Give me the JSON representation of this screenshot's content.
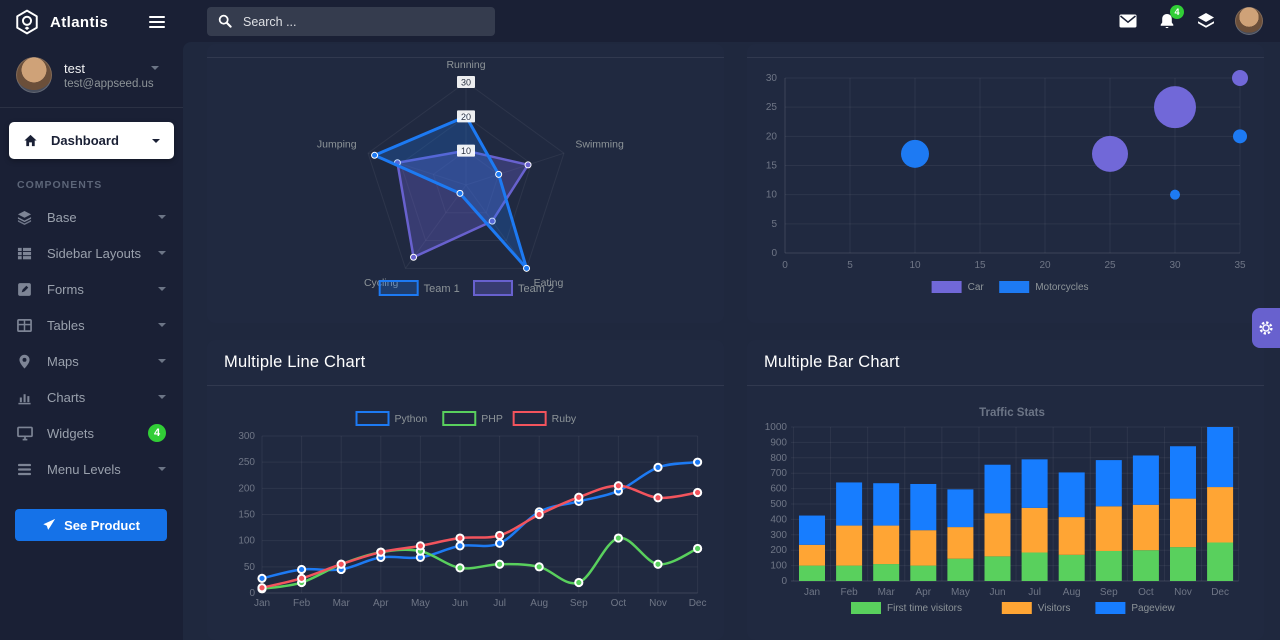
{
  "app": {
    "brand": "Atlantis"
  },
  "sidebar": {
    "user": {
      "name": "test",
      "email": "test@appseed.us"
    },
    "dashboard_label": "Dashboard",
    "section_label": "COMPONENTS",
    "items": [
      {
        "label": "Base",
        "icon": "layers"
      },
      {
        "label": "Sidebar Layouts",
        "icon": "th-list"
      },
      {
        "label": "Forms",
        "icon": "pen-square"
      },
      {
        "label": "Tables",
        "icon": "table"
      },
      {
        "label": "Maps",
        "icon": "map-pin"
      },
      {
        "label": "Charts",
        "icon": "chart-bar"
      },
      {
        "label": "Widgets",
        "icon": "desktop",
        "badge": "4"
      },
      {
        "label": "Menu Levels",
        "icon": "bars"
      }
    ],
    "cta_label": "See Product"
  },
  "header": {
    "search_placeholder": "Search ...",
    "notification_count": "4",
    "icons": [
      "email-icon",
      "notification-bell-icon",
      "layers-icon",
      "user-avatar"
    ]
  },
  "colors": {
    "bg": "#1a2035",
    "content_bg": "#1f283e",
    "card_bg": "#202940",
    "primary": "#1572e8",
    "purple": "#6861ce",
    "success": "#31ce36",
    "blue": "#1d7af3",
    "green": "#59d05d",
    "red": "#f3545d",
    "orange": "#ffa534",
    "bar_blue": "#177dff",
    "muted_text": "#8d9498"
  },
  "chart_data": [
    {
      "type": "radar",
      "categories": [
        "Running",
        "Swimming",
        "Eating",
        "Cycling",
        "Jumping"
      ],
      "series": [
        {
          "name": "Team 1",
          "color": "#1d7af3",
          "fill": "rgba(29,122,243,0.25)",
          "values": [
            20,
            10,
            30,
            3,
            28
          ]
        },
        {
          "name": "Team 2",
          "color": "#6861ce",
          "fill": "rgba(104,97,206,0.35)",
          "values": [
            10,
            19,
            13,
            26,
            21
          ]
        }
      ],
      "ticks": [
        10,
        20,
        30
      ],
      "max": 30,
      "legend_position": "bottom"
    },
    {
      "type": "bubble",
      "series": [
        {
          "name": "Car",
          "color": "#7168d8",
          "points": [
            {
              "x": 25,
              "y": 17,
              "r": 18
            },
            {
              "x": 30,
              "y": 25,
              "r": 21
            },
            {
              "x": 35,
              "y": 30,
              "r": 8
            }
          ]
        },
        {
          "name": "Motorcycles",
          "color": "#1d7af3",
          "points": [
            {
              "x": 10,
              "y": 17,
              "r": 14
            },
            {
              "x": 30,
              "y": 10,
              "r": 5
            },
            {
              "x": 35,
              "y": 20,
              "r": 7
            }
          ]
        }
      ],
      "xlim": [
        0,
        35
      ],
      "xstep": 5,
      "ylim": [
        0,
        30
      ],
      "ystep": 5,
      "grid": true,
      "legend_position": "bottom"
    },
    {
      "type": "line",
      "title": "Multiple Line Chart",
      "categories": [
        "Jan",
        "Feb",
        "Mar",
        "Apr",
        "May",
        "Jun",
        "Jul",
        "Aug",
        "Sep",
        "Oct",
        "Nov",
        "Dec"
      ],
      "series": [
        {
          "name": "Python",
          "color": "#1d7af3",
          "values": [
            28,
            45,
            45,
            68,
            68,
            90,
            95,
            155,
            175,
            195,
            240,
            250
          ]
        },
        {
          "name": "PHP",
          "color": "#59d05d",
          "values": [
            8,
            20,
            55,
            78,
            80,
            48,
            55,
            50,
            20,
            105,
            55,
            85
          ]
        },
        {
          "name": "Ruby",
          "color": "#f3545d",
          "values": [
            10,
            28,
            55,
            78,
            90,
            105,
            110,
            150,
            183,
            205,
            182,
            192
          ]
        }
      ],
      "ylim": [
        0,
        300
      ],
      "ystep": 50,
      "grid": true,
      "legend_position": "top"
    },
    {
      "type": "bar",
      "stacked": true,
      "title": "Multiple Bar Chart",
      "chart_title": "Traffic Stats",
      "categories": [
        "Jan",
        "Feb",
        "Mar",
        "Apr",
        "May",
        "Jun",
        "Jul",
        "Aug",
        "Sep",
        "Oct",
        "Nov",
        "Dec"
      ],
      "series": [
        {
          "name": "First time visitors",
          "color": "#59d05d",
          "values": [
            100,
            100,
            110,
            100,
            145,
            160,
            185,
            170,
            195,
            200,
            220,
            250
          ]
        },
        {
          "name": "Visitors",
          "color": "#ffa534",
          "values": [
            135,
            260,
            250,
            230,
            205,
            280,
            290,
            245,
            290,
            295,
            315,
            360
          ]
        },
        {
          "name": "Pageview",
          "color": "#177dff",
          "values": [
            190,
            280,
            275,
            300,
            245,
            315,
            315,
            290,
            300,
            320,
            340,
            390
          ]
        }
      ],
      "ylim": [
        0,
        1000
      ],
      "ystep": 100,
      "grid": true,
      "legend_position": "bottom"
    }
  ]
}
